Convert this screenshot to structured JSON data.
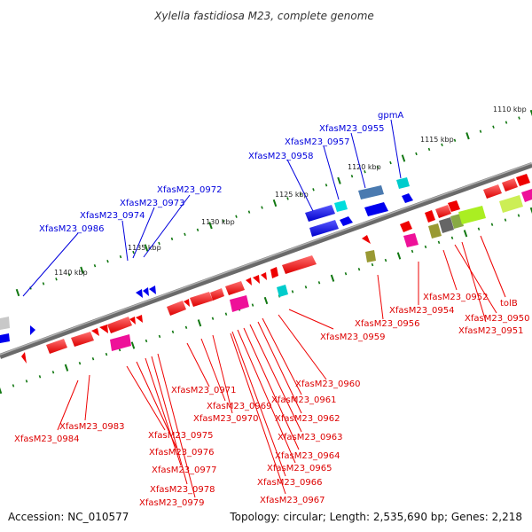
{
  "title": "Xylella fastidiosa M23, complete genome",
  "footer": {
    "accession": "Accession: NC_010577",
    "stats": "Topology: circular; Length: 2,535,690 bp; Genes: 2,218"
  },
  "colors": {
    "forward": "#0000ee",
    "reverse": "#ee0000",
    "backbone": "#888888",
    "tick": "#117711"
  },
  "scale_labels": [
    "1110 kbp",
    "1115 kbp",
    "1120 kbp",
    "1125 kbp",
    "1130 kbp",
    "1135 kbp",
    "1140 kbp"
  ],
  "forward_genes": [
    {
      "name": "XfasM23_0986"
    },
    {
      "name": "XfasM23_0974"
    },
    {
      "name": "XfasM23_0973"
    },
    {
      "name": "XfasM23_0972"
    },
    {
      "name": "XfasM23_0958"
    },
    {
      "name": "XfasM23_0957"
    },
    {
      "name": "XfasM23_0955"
    },
    {
      "name": "gpmA"
    }
  ],
  "reverse_genes": [
    {
      "name": "XfasM23_0984"
    },
    {
      "name": "XfasM23_0983"
    },
    {
      "name": "XfasM23_0975"
    },
    {
      "name": "XfasM23_0976"
    },
    {
      "name": "XfasM23_0977"
    },
    {
      "name": "XfasM23_0978"
    },
    {
      "name": "XfasM23_0979"
    },
    {
      "name": "XfasM23_0971"
    },
    {
      "name": "XfasM23_0969"
    },
    {
      "name": "XfasM23_0970"
    },
    {
      "name": "XfasM23_0960"
    },
    {
      "name": "XfasM23_0961"
    },
    {
      "name": "XfasM23_0962"
    },
    {
      "name": "XfasM23_0963"
    },
    {
      "name": "XfasM23_0964"
    },
    {
      "name": "XfasM23_0965"
    },
    {
      "name": "XfasM23_0966"
    },
    {
      "name": "XfasM23_0967"
    },
    {
      "name": "XfasM23_0959"
    },
    {
      "name": "XfasM23_0956"
    },
    {
      "name": "XfasM23_0954"
    },
    {
      "name": "XfasM23_0952"
    },
    {
      "name": "XfasM23_0950"
    },
    {
      "name": "XfasM23_0951"
    },
    {
      "name": "tolB"
    }
  ]
}
